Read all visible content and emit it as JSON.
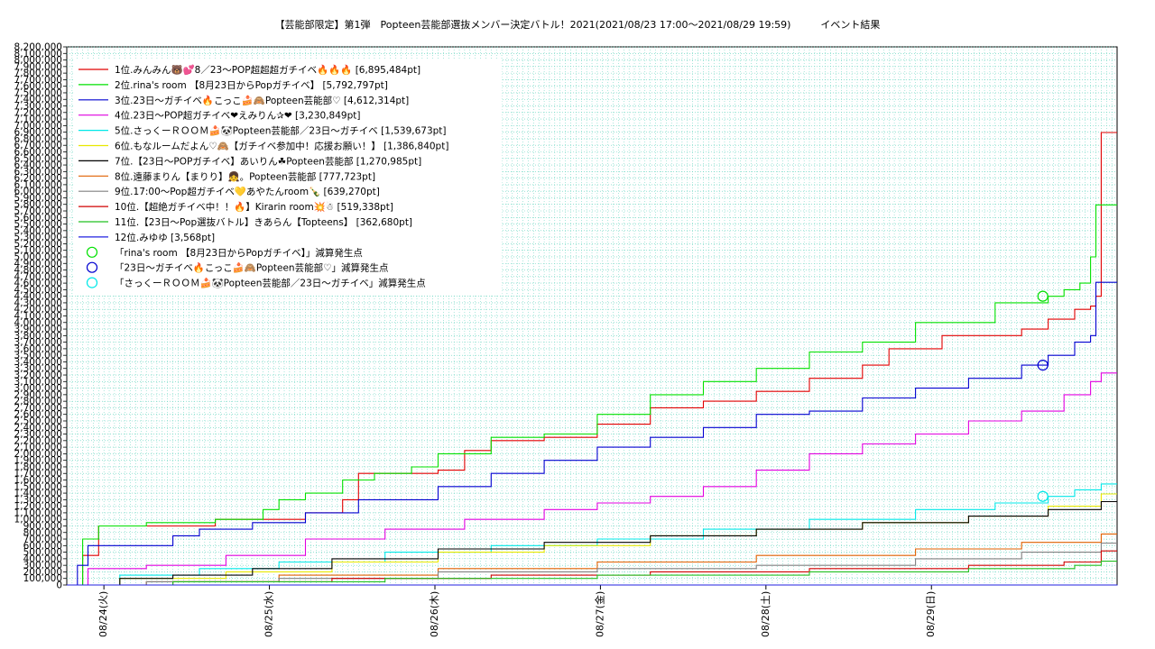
{
  "title": "【芸能部限定】第1弾　Popteen芸能部選抜メンバー決定バトル！2021(2021/08/23 17:00〜2021/08/29 19:59)　　　イベント結果",
  "chart_data": {
    "type": "line",
    "title": "【芸能部限定】第1弾　Popteen芸能部選抜メンバー決定バトル！2021(2021/08/23 17:00〜2021/08/29 19:59)　　　イベント結果",
    "xlabel": "",
    "ylabel": "",
    "x_ticks": [
      "08/24(火)",
      "08/25(水)",
      "08/26(木)",
      "08/27(金)",
      "08/28(土)",
      "08/29(日)"
    ],
    "x_range": [
      "08/23 17:00",
      "08/29 19:59"
    ],
    "ylim": [
      0,
      8200000
    ],
    "y_tick_step": 100000,
    "grid": true,
    "legend_position": "top-left",
    "series": [
      {
        "name": "1位.みんみん🐻💕8／23〜POP超超超ガチイベ🔥🔥🔥 [6,895,484pt]",
        "color": "#e00000",
        "points": [
          [
            0,
            0
          ],
          [
            3,
            450000
          ],
          [
            6,
            900000
          ],
          [
            25,
            900000
          ],
          [
            28,
            1000000
          ],
          [
            45,
            1100000
          ],
          [
            52,
            1300000
          ],
          [
            55,
            1700000
          ],
          [
            70,
            1750000
          ],
          [
            75,
            2050000
          ],
          [
            80,
            2200000
          ],
          [
            90,
            2250000
          ],
          [
            100,
            2450000
          ],
          [
            110,
            2700000
          ],
          [
            120,
            2800000
          ],
          [
            130,
            2950000
          ],
          [
            140,
            3150000
          ],
          [
            150,
            3350000
          ],
          [
            155,
            3600000
          ],
          [
            165,
            3800000
          ],
          [
            180,
            3900000
          ],
          [
            185,
            4050000
          ],
          [
            190,
            4200000
          ],
          [
            193,
            4250000
          ],
          [
            194,
            4400000
          ],
          [
            195,
            6895484
          ],
          [
            198,
            6895484
          ]
        ]
      },
      {
        "name": "2位.rina's room 【8月23日からPopガチイベ】 [5,792,797pt]",
        "color": "#00e000",
        "points": [
          [
            0,
            0
          ],
          [
            3,
            700000
          ],
          [
            6,
            900000
          ],
          [
            15,
            950000
          ],
          [
            28,
            1000000
          ],
          [
            37,
            1150000
          ],
          [
            40,
            1300000
          ],
          [
            45,
            1400000
          ],
          [
            52,
            1600000
          ],
          [
            58,
            1700000
          ],
          [
            65,
            1800000
          ],
          [
            70,
            2000000
          ],
          [
            80,
            2250000
          ],
          [
            90,
            2300000
          ],
          [
            100,
            2600000
          ],
          [
            110,
            2900000
          ],
          [
            120,
            3100000
          ],
          [
            130,
            3300000
          ],
          [
            140,
            3550000
          ],
          [
            150,
            3700000
          ],
          [
            160,
            4000000
          ],
          [
            175,
            4300000
          ],
          [
            185,
            4400000
          ],
          [
            188,
            4500000
          ],
          [
            191,
            4600000
          ],
          [
            193,
            5000000
          ],
          [
            194,
            5792797
          ],
          [
            198,
            5792797
          ]
        ]
      },
      {
        "name": "3位.23日〜ガチイベ🔥こっこ🍰🙈Popteen芸能部♡ [4,612,314pt]",
        "color": "#0000d0",
        "points": [
          [
            0,
            0
          ],
          [
            2,
            300000
          ],
          [
            4,
            600000
          ],
          [
            16,
            600000
          ],
          [
            20,
            750000
          ],
          [
            25,
            850000
          ],
          [
            35,
            950000
          ],
          [
            45,
            1100000
          ],
          [
            55,
            1300000
          ],
          [
            70,
            1500000
          ],
          [
            80,
            1700000
          ],
          [
            90,
            1900000
          ],
          [
            100,
            2100000
          ],
          [
            110,
            2250000
          ],
          [
            120,
            2400000
          ],
          [
            130,
            2600000
          ],
          [
            140,
            2650000
          ],
          [
            150,
            2850000
          ],
          [
            160,
            3000000
          ],
          [
            170,
            3150000
          ],
          [
            180,
            3350000
          ],
          [
            185,
            3500000
          ],
          [
            190,
            3700000
          ],
          [
            193,
            3800000
          ],
          [
            194,
            4612314
          ],
          [
            198,
            4612314
          ]
        ]
      },
      {
        "name": "4位.23日〜POP超ガチイベ❤えみりん✰❤ [3,230,849pt]",
        "color": "#e000e0",
        "points": [
          [
            0,
            0
          ],
          [
            4,
            250000
          ],
          [
            15,
            300000
          ],
          [
            30,
            450000
          ],
          [
            45,
            700000
          ],
          [
            60,
            850000
          ],
          [
            75,
            1000000
          ],
          [
            90,
            1150000
          ],
          [
            100,
            1250000
          ],
          [
            110,
            1350000
          ],
          [
            120,
            1500000
          ],
          [
            130,
            1750000
          ],
          [
            140,
            2000000
          ],
          [
            150,
            2150000
          ],
          [
            160,
            2300000
          ],
          [
            170,
            2500000
          ],
          [
            180,
            2650000
          ],
          [
            188,
            2900000
          ],
          [
            193,
            3100000
          ],
          [
            195,
            3230849
          ],
          [
            198,
            3230849
          ]
        ]
      },
      {
        "name": "5位.さっくーＲＯＯＭ🍰🐼Popteen芸能部／23日〜ガチイベ [1,539,673pt]",
        "color": "#00e8e8",
        "points": [
          [
            0,
            0
          ],
          [
            10,
            150000
          ],
          [
            25,
            250000
          ],
          [
            40,
            350000
          ],
          [
            60,
            500000
          ],
          [
            80,
            600000
          ],
          [
            100,
            700000
          ],
          [
            120,
            850000
          ],
          [
            140,
            1000000
          ],
          [
            160,
            1150000
          ],
          [
            175,
            1250000
          ],
          [
            185,
            1350000
          ],
          [
            190,
            1450000
          ],
          [
            195,
            1539673
          ],
          [
            198,
            1539673
          ]
        ]
      },
      {
        "name": "6位.もなルームだよん♡🙈【ガチイベ参加中！応援お願い！】 [1,386,840pt]",
        "color": "#e8e800",
        "points": [
          [
            0,
            0
          ],
          [
            10,
            100000
          ],
          [
            30,
            200000
          ],
          [
            50,
            350000
          ],
          [
            70,
            500000
          ],
          [
            90,
            600000
          ],
          [
            110,
            750000
          ],
          [
            130,
            850000
          ],
          [
            150,
            950000
          ],
          [
            170,
            1050000
          ],
          [
            185,
            1200000
          ],
          [
            195,
            1386840
          ],
          [
            198,
            1386840
          ]
        ]
      },
      {
        "name": "7位.【23日〜POPガチイベ】あいりん☘Popteen芸能部 [1,270,985pt]",
        "color": "#000000",
        "points": [
          [
            0,
            0
          ],
          [
            10,
            100000
          ],
          [
            20,
            150000
          ],
          [
            35,
            250000
          ],
          [
            50,
            400000
          ],
          [
            70,
            550000
          ],
          [
            90,
            650000
          ],
          [
            110,
            750000
          ],
          [
            130,
            850000
          ],
          [
            150,
            950000
          ],
          [
            170,
            1050000
          ],
          [
            185,
            1150000
          ],
          [
            195,
            1270985
          ],
          [
            198,
            1270985
          ]
        ]
      },
      {
        "name": "8位.遠藤まりん【まりり】👧。Popteen芸能部 [777,723pt]",
        "color": "#e06000",
        "points": [
          [
            0,
            0
          ],
          [
            15,
            50000
          ],
          [
            40,
            150000
          ],
          [
            70,
            250000
          ],
          [
            100,
            350000
          ],
          [
            130,
            450000
          ],
          [
            160,
            550000
          ],
          [
            180,
            650000
          ],
          [
            195,
            777723
          ],
          [
            198,
            777723
          ]
        ]
      },
      {
        "name": "9位.17:00〜Pop超ガチイベ💛あやたんroom🍾 [639,270pt]",
        "color": "#808080",
        "points": [
          [
            0,
            0
          ],
          [
            15,
            50000
          ],
          [
            40,
            100000
          ],
          [
            70,
            200000
          ],
          [
            100,
            250000
          ],
          [
            130,
            300000
          ],
          [
            160,
            400000
          ],
          [
            180,
            500000
          ],
          [
            195,
            639270
          ],
          [
            198,
            639270
          ]
        ]
      },
      {
        "name": "10位.【超絶ガチイベ中！！🔥】Kirarin room💥☃ [519,338pt]",
        "color": "#d00000",
        "points": [
          [
            0,
            0
          ],
          [
            20,
            50000
          ],
          [
            50,
            100000
          ],
          [
            80,
            150000
          ],
          [
            110,
            200000
          ],
          [
            140,
            250000
          ],
          [
            170,
            300000
          ],
          [
            188,
            350000
          ],
          [
            195,
            519338
          ],
          [
            198,
            519338
          ]
        ]
      },
      {
        "name": "11位.【23日〜Pop選抜バトル】きあらん【Topteens】 [362,680pt]",
        "color": "#20c020",
        "points": [
          [
            0,
            0
          ],
          [
            20,
            50000
          ],
          [
            60,
            100000
          ],
          [
            100,
            150000
          ],
          [
            140,
            200000
          ],
          [
            170,
            250000
          ],
          [
            190,
            300000
          ],
          [
            195,
            362680
          ],
          [
            198,
            362680
          ]
        ]
      },
      {
        "name": "12位.みゆゆ [3,568pt]",
        "color": "#2020e0",
        "points": [
          [
            0,
            0
          ],
          [
            198,
            3568
          ]
        ]
      }
    ],
    "markers": [
      {
        "name": "「rina's room 【8月23日からPopガチイベ】」減算発生点",
        "color": "#00e000",
        "at": [
          184,
          4400000
        ]
      },
      {
        "name": "「23日〜ガチイベ🔥こっこ🍰🙈Popteen芸能部♡」減算発生点",
        "color": "#0000d0",
        "at": [
          184,
          3350000
        ]
      },
      {
        "name": "「さっくーＲＯＯＭ🍰🐼Popteen芸能部／23日〜ガチイベ」減算発生点",
        "color": "#00e8e8",
        "at": [
          184,
          1350000
        ]
      }
    ]
  }
}
